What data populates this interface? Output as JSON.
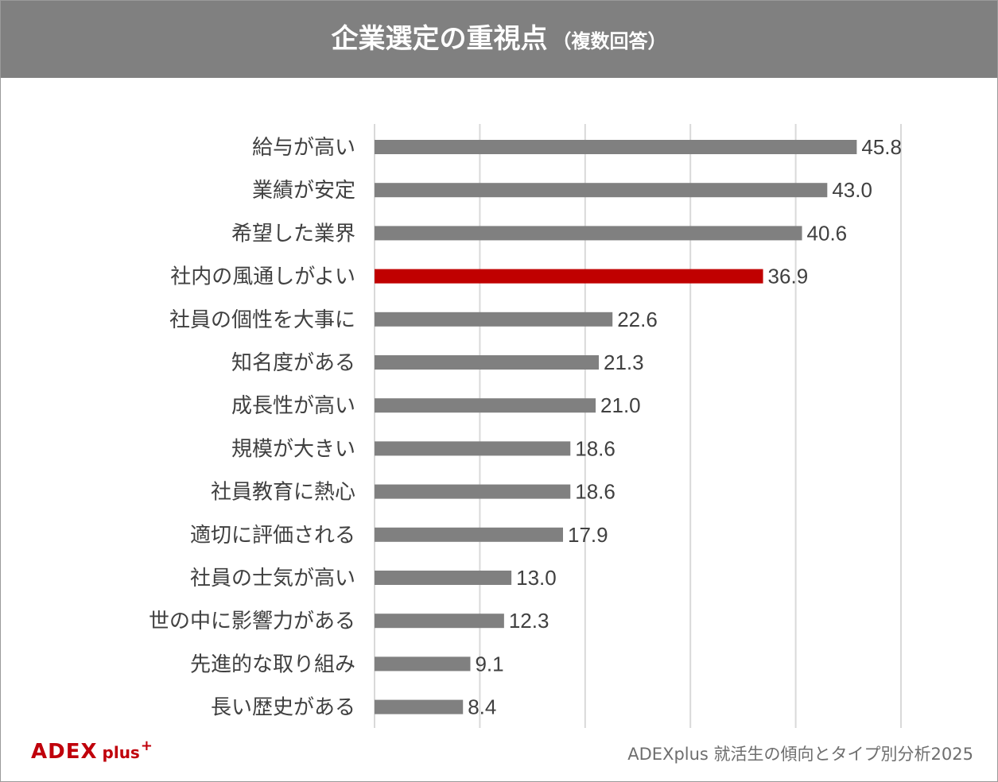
{
  "header": {
    "title": "企業選定の重視点",
    "subtitle": "（複数回答）"
  },
  "colors": {
    "header_bg": "#808080",
    "bar": "#808080",
    "highlight_bar": "#c00000",
    "grid": "#d9d9d9",
    "brand_red": "#c0000b"
  },
  "chart_data": {
    "type": "bar",
    "orientation": "horizontal",
    "categories": [
      "給与が高い",
      "業績が安定",
      "希望した業界",
      "社内の風通しがよい",
      "社員の個性を大事に",
      "知名度がある",
      "成長性が高い",
      "規模が大きい",
      "社員教育に熱心",
      "適切に評価される",
      "社員の士気が高い",
      "世の中に影響力がある",
      "先進的な取り組み",
      "長い歴史がある"
    ],
    "values": [
      45.8,
      43.0,
      40.6,
      36.9,
      22.6,
      21.3,
      21.0,
      18.6,
      18.6,
      17.9,
      13.0,
      12.3,
      9.1,
      8.4
    ],
    "value_labels": [
      "45.8",
      "43.0",
      "40.6",
      "36.9",
      "22.6",
      "21.3",
      "21.0",
      "18.6",
      "18.6",
      "17.9",
      "13.0",
      "12.3",
      "9.1",
      "8.4"
    ],
    "highlight_category": "社内の風通しがよい",
    "xlim": [
      0,
      50
    ],
    "grid": true,
    "gridline_step": 10,
    "legend": "none"
  },
  "footer": {
    "logo_brand": "ADEX",
    "logo_plus": "plus",
    "logo_sup": "+",
    "source": "ADEXplus 就活生の傾向とタイプ別分析2025"
  }
}
